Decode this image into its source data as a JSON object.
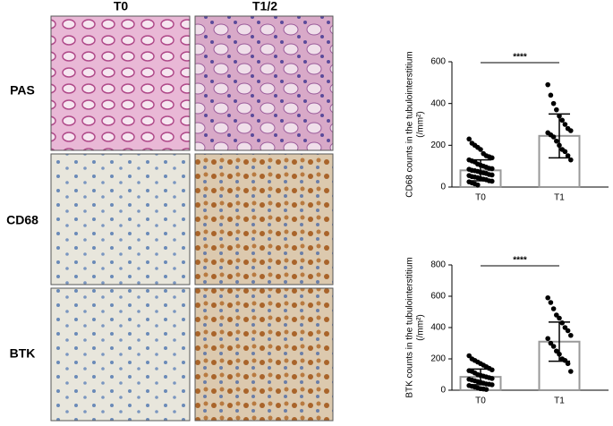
{
  "panels": {
    "columns": [
      "T0",
      "T1/2"
    ],
    "rows": [
      "PAS",
      "CD68",
      "BTK"
    ]
  },
  "chart_data": [
    {
      "type": "bar",
      "ylabel": [
        "CD68 counts in the tubulointerstitium",
        "(/mm²)"
      ],
      "categories": [
        "T0",
        "T1"
      ],
      "values": [
        80,
        245
      ],
      "errors": [
        50,
        105
      ],
      "color": "#999999",
      "points": [
        [
          230,
          210,
          200,
          190,
          180,
          160,
          150,
          145,
          140,
          130,
          125,
          120,
          110,
          105,
          100,
          95,
          90,
          88,
          85,
          80,
          78,
          75,
          70,
          68,
          65,
          60,
          58,
          55,
          50,
          48,
          45,
          40,
          38,
          35,
          30,
          28,
          25,
          20,
          15,
          10
        ],
        [
          490,
          440,
          400,
          370,
          340,
          320,
          300,
          280,
          270,
          260,
          250,
          240,
          220,
          200,
          180,
          170,
          150,
          130
        ]
      ],
      "significance": "****",
      "ylim": [
        0,
        600
      ],
      "yticks": [
        0,
        200,
        400,
        600
      ]
    },
    {
      "type": "bar",
      "ylabel": [
        "BTK counts in the  tubulointerstitium",
        "(/mm²)"
      ],
      "categories": [
        "T0",
        "T1"
      ],
      "values": [
        85,
        310
      ],
      "errors": [
        50,
        125
      ],
      "color": "#999999",
      "points": [
        [
          220,
          200,
          190,
          180,
          170,
          160,
          150,
          140,
          130,
          125,
          120,
          110,
          100,
          95,
          90,
          85,
          80,
          75,
          70,
          65,
          60,
          55,
          50,
          45,
          40,
          38,
          35,
          30,
          25,
          20,
          15,
          10,
          8,
          5
        ],
        [
          590,
          560,
          520,
          480,
          460,
          430,
          400,
          380,
          350,
          330,
          300,
          280,
          250,
          230,
          200,
          190,
          170,
          120
        ]
      ],
      "significance": "****",
      "ylim": [
        0,
        800
      ],
      "yticks": [
        0,
        200,
        400,
        600,
        800
      ]
    }
  ]
}
